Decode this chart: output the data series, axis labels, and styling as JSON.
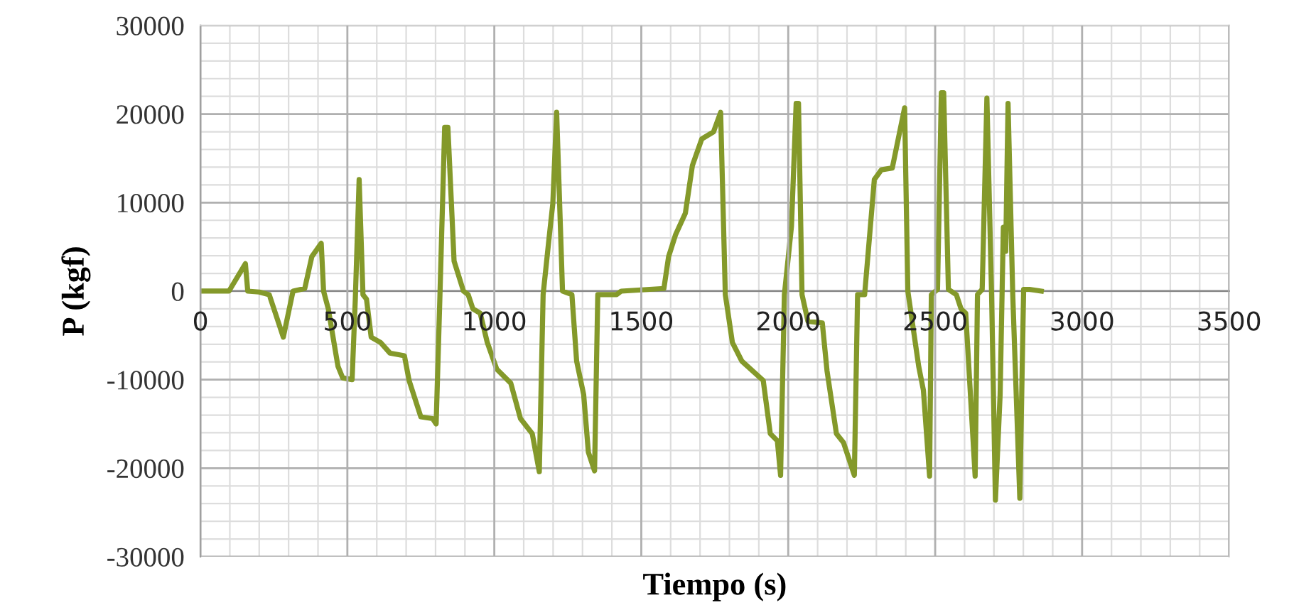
{
  "chart_data": {
    "type": "line",
    "xlabel": "Tiempo (s)",
    "ylabel": "P (kgf)",
    "x": [
      0,
      97,
      153,
      161,
      200,
      234,
      282,
      315,
      355,
      379,
      411,
      419,
      435,
      468,
      484,
      516,
      527,
      540,
      553,
      565,
      581,
      613,
      645,
      694,
      710,
      750,
      790,
      802,
      815,
      831,
      842,
      863,
      895,
      911,
      927,
      952,
      976,
      1008,
      1056,
      1089,
      1129,
      1153,
      1166,
      1185,
      1199,
      1212,
      1232,
      1264,
      1280,
      1304,
      1320,
      1341,
      1352,
      1416,
      1432,
      1577,
      1593,
      1617,
      1650,
      1674,
      1706,
      1746,
      1770,
      1786,
      1810,
      1842,
      1915,
      1939,
      1963,
      1974,
      1987,
      2011,
      2027,
      2035,
      2047,
      2067,
      2116,
      2132,
      2164,
      2188,
      2225,
      2236,
      2260,
      2293,
      2317,
      2354,
      2396,
      2407,
      2444,
      2460,
      2481,
      2487,
      2508,
      2521,
      2529,
      2545,
      2572,
      2588,
      2604,
      2636,
      2644,
      2660,
      2676,
      2692,
      2705,
      2721,
      2732,
      2740,
      2748,
      2764,
      2788,
      2801,
      2821,
      2861
    ],
    "series": [
      {
        "color": "#84992a",
        "values": [
          0,
          0,
          3100,
          0,
          -100,
          -400,
          -5200,
          0,
          300,
          3900,
          5400,
          0,
          -2000,
          -8500,
          -9800,
          -10000,
          -900,
          12600,
          -400,
          -900,
          -5200,
          -5800,
          -7000,
          -7300,
          -10100,
          -14200,
          -14400,
          -15000,
          -400,
          18500,
          18500,
          3400,
          0,
          -400,
          -2000,
          -2500,
          -5800,
          -8800,
          -10400,
          -14400,
          -16100,
          -20400,
          -400,
          5600,
          9900,
          20200,
          0,
          -400,
          -7900,
          -11700,
          -18200,
          -20300,
          -400,
          -400,
          0,
          300,
          3900,
          6400,
          8800,
          14200,
          17200,
          18000,
          20200,
          -400,
          -5800,
          -7900,
          -10100,
          -16100,
          -16900,
          -20800,
          -400,
          7300,
          21200,
          21200,
          -400,
          -3400,
          -3600,
          -9000,
          -16100,
          -17100,
          -20800,
          -400,
          -400,
          12600,
          13700,
          13900,
          20700,
          0,
          -8500,
          -11200,
          -20900,
          -400,
          200,
          22400,
          22400,
          200,
          -400,
          -2000,
          -2500,
          -20900,
          -400,
          200,
          21800,
          -400,
          -23600,
          -11700,
          7200,
          4500,
          21200,
          -400,
          -23400,
          200,
          200,
          0
        ]
      }
    ],
    "xlim": [
      0,
      3500
    ],
    "xticks": [
      0,
      500,
      1000,
      1500,
      2000,
      2500,
      3000,
      3500
    ],
    "ylim": [
      -30000,
      30000
    ],
    "yticks": [
      -30000,
      -20000,
      -10000,
      0,
      10000,
      20000,
      30000
    ],
    "grid": true,
    "legend": false,
    "marker": "none",
    "line_style": "solid"
  }
}
